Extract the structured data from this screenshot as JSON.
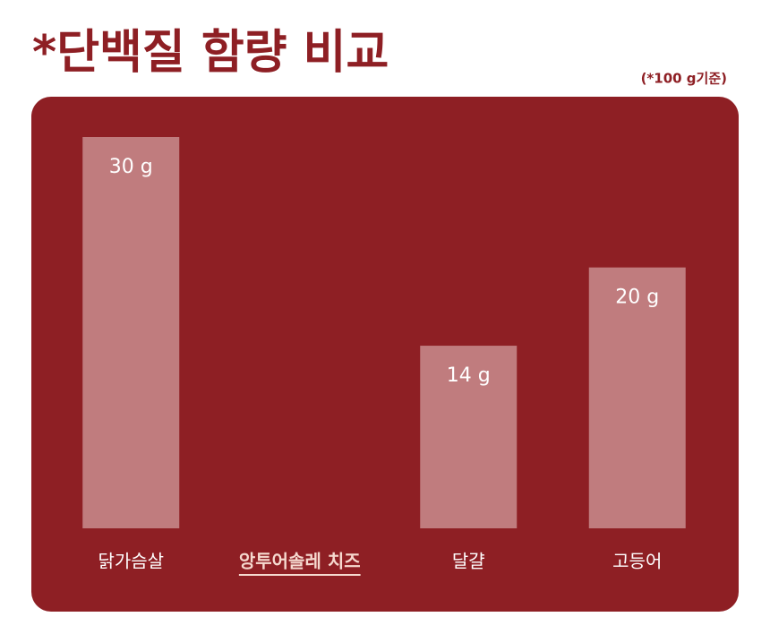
{
  "chart_data": {
    "type": "bar",
    "title": "*단백질 함량 비교",
    "subtitle": "(*100 g기준)",
    "categories": [
      "닭가슴살",
      "앙투어솔레 치즈",
      "달걀",
      "고등어"
    ],
    "values": [
      30,
      null,
      14,
      20
    ],
    "value_labels": [
      "30 g",
      null,
      "14 g",
      "20 g"
    ],
    "color": "#c07c7e",
    "background": "#8e1f24",
    "highlight_category": 1,
    "ylim": [
      0,
      30
    ]
  }
}
